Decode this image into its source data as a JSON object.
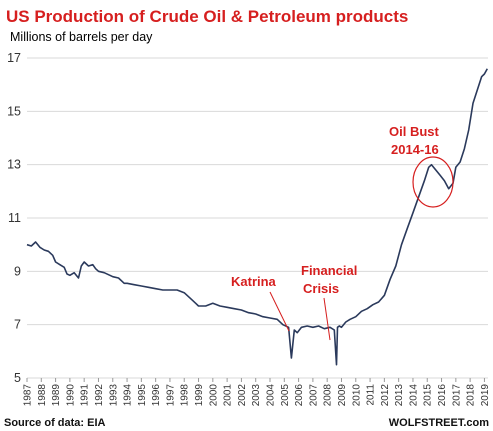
{
  "chart_data": {
    "type": "line",
    "title": "US Production of Crude Oil & Petroleum products",
    "ylabel": "Millions of barrels per day",
    "xlabel": "",
    "ylim": [
      5,
      17
    ],
    "yticks": [
      "5",
      "7",
      "9",
      "11",
      "13",
      "15",
      "17"
    ],
    "xlim": [
      1987,
      2019.25
    ],
    "xticks": [
      "1987",
      "1988",
      "1989",
      "1990",
      "1991",
      "1992",
      "1993",
      "1994",
      "1995",
      "1996",
      "1997",
      "1998",
      "1999",
      "2000",
      "2001",
      "2002",
      "2003",
      "2004",
      "2005",
      "2006",
      "2007",
      "2008",
      "2009",
      "2010",
      "2011",
      "2012",
      "2013",
      "2014",
      "2015",
      "2016",
      "2017",
      "2018",
      "2019"
    ],
    "grid": "horizontal",
    "legend": "none",
    "line_color": "#2b3a5c",
    "accent_color": "#d61f1f",
    "series": [
      {
        "x": [
          1987.0,
          1987.3,
          1987.6,
          1987.9,
          1988.2,
          1988.5,
          1988.8,
          1989.0,
          1989.3,
          1989.6,
          1989.8,
          1990.0,
          1990.3,
          1990.6,
          1990.8,
          1991.0,
          1991.3,
          1991.6,
          1991.8,
          1992.0,
          1992.4,
          1992.8,
          1993.0,
          1993.4,
          1993.8,
          1994.0,
          1994.5,
          1995.0,
          1995.5,
          1996.0,
          1996.5,
          1997.0,
          1997.5,
          1998.0,
          1998.5,
          1998.8,
          1999.0,
          1999.5,
          2000.0,
          2000.5,
          2001.0,
          2001.5,
          2002.0,
          2002.5,
          2003.0,
          2003.5,
          2004.0,
          2004.5,
          2004.9,
          2005.3,
          2005.5,
          2005.7,
          2005.9,
          2006.2,
          2006.6,
          2007.0,
          2007.4,
          2007.8,
          2008.2,
          2008.5,
          2008.65,
          2008.72,
          2008.85,
          2009.0,
          2009.3,
          2009.6,
          2010.0,
          2010.4,
          2010.8,
          2011.2,
          2011.6,
          2012.0,
          2012.4,
          2012.8,
          2013.2,
          2013.6,
          2014.0,
          2014.4,
          2014.8,
          2015.1,
          2015.3,
          2015.6,
          2015.9,
          2016.2,
          2016.5,
          2016.8,
          2017.0,
          2017.3,
          2017.6,
          2017.9,
          2018.2,
          2018.5,
          2018.8,
          2019.0,
          2019.2
        ],
        "y": [
          10.0,
          9.95,
          10.1,
          9.9,
          9.8,
          9.75,
          9.6,
          9.35,
          9.25,
          9.15,
          8.9,
          8.85,
          8.95,
          8.75,
          9.2,
          9.35,
          9.2,
          9.25,
          9.1,
          9.0,
          8.95,
          8.85,
          8.8,
          8.75,
          8.55,
          8.55,
          8.5,
          8.45,
          8.4,
          8.35,
          8.3,
          8.3,
          8.3,
          8.2,
          7.95,
          7.8,
          7.7,
          7.7,
          7.8,
          7.7,
          7.65,
          7.6,
          7.55,
          7.45,
          7.4,
          7.3,
          7.25,
          7.2,
          7.0,
          6.9,
          5.75,
          6.8,
          6.7,
          6.9,
          6.95,
          6.9,
          6.95,
          6.85,
          6.9,
          6.8,
          5.5,
          6.9,
          6.95,
          6.9,
          7.1,
          7.2,
          7.3,
          7.5,
          7.6,
          7.75,
          7.85,
          8.1,
          8.7,
          9.2,
          10.0,
          10.6,
          11.2,
          11.8,
          12.4,
          12.9,
          13.0,
          12.8,
          12.6,
          12.4,
          12.1,
          12.3,
          12.9,
          13.1,
          13.6,
          14.3,
          15.3,
          15.8,
          16.3,
          16.4,
          16.6
        ]
      }
    ],
    "annotations": {
      "katrina": "Katrina",
      "financial_line1": "Financial",
      "financial_line2": "Crisis",
      "bust_line1": "Oil Bust",
      "bust_line2": "2014-16"
    }
  },
  "footer": {
    "source": "Source of data: EIA",
    "brand": "WOLFSTREET.com"
  }
}
